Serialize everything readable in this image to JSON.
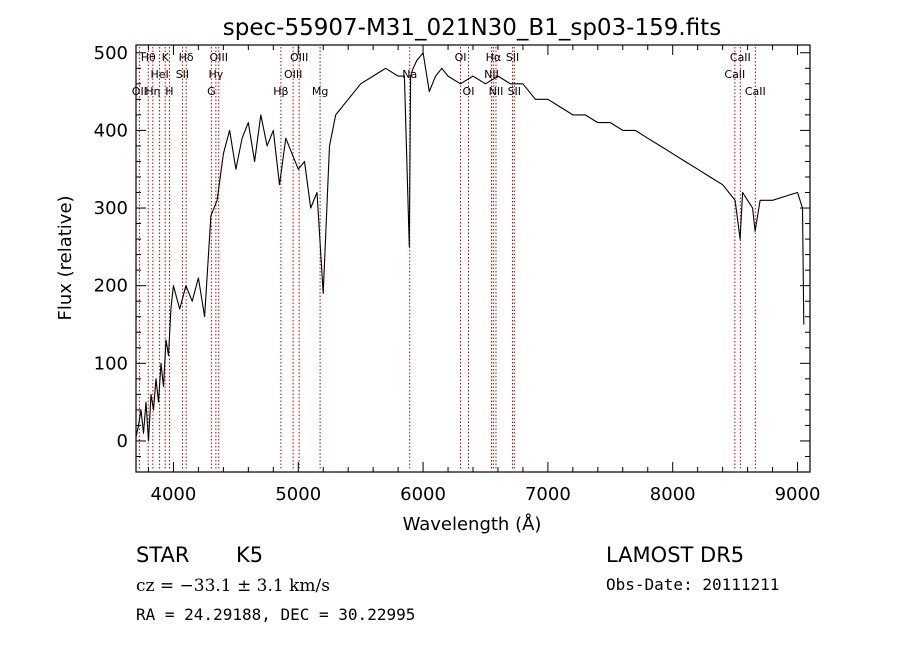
{
  "chart_data": {
    "type": "line",
    "title": "spec-55907-M31_021N30_B1_sp03-159.fits",
    "xlabel": "Wavelength (Å)",
    "ylabel": "Flux (relative)",
    "xlim": [
      3700,
      9100
    ],
    "ylim": [
      -40,
      510
    ],
    "grid": false,
    "x_ticks": [
      4000,
      5000,
      6000,
      7000,
      8000,
      9000
    ],
    "x_tick_labels": [
      "4000",
      "5000",
      "6000",
      "7000",
      "8000",
      "9000"
    ],
    "y_ticks": [
      0,
      100,
      200,
      300,
      400,
      500
    ],
    "y_tick_labels": [
      "0",
      "100",
      "200",
      "300",
      "400",
      "500"
    ],
    "series": [
      {
        "x": [
          3700,
          3720,
          3740,
          3760,
          3780,
          3800,
          3820,
          3840,
          3860,
          3880,
          3900,
          3920,
          3940,
          3960,
          3980,
          4000,
          4050,
          4100,
          4150,
          4200,
          4250,
          4300,
          4350,
          4400,
          4450,
          4500,
          4550,
          4600,
          4650,
          4700,
          4750,
          4800,
          4850,
          4900,
          4950,
          5000,
          5050,
          5100,
          5150,
          5200,
          5250,
          5300,
          5400,
          5500,
          5600,
          5700,
          5800,
          5850,
          5890,
          5900,
          5920,
          5950,
          6000,
          6050,
          6100,
          6150,
          6200,
          6300,
          6400,
          6500,
          6600,
          6700,
          6800,
          6900,
          7000,
          7100,
          7200,
          7300,
          7400,
          7500,
          7600,
          7700,
          7800,
          7900,
          8000,
          8100,
          8200,
          8300,
          8400,
          8450,
          8500,
          8540,
          8560,
          8600,
          8640,
          8660,
          8700,
          8800,
          8900,
          9000,
          9040,
          9050
        ],
        "y": [
          5,
          20,
          40,
          10,
          50,
          0,
          60,
          40,
          80,
          50,
          100,
          70,
          130,
          110,
          170,
          200,
          170,
          200,
          180,
          210,
          160,
          290,
          310,
          370,
          400,
          350,
          390,
          410,
          360,
          420,
          380,
          400,
          330,
          390,
          370,
          350,
          360,
          300,
          320,
          190,
          380,
          420,
          440,
          460,
          470,
          480,
          470,
          470,
          250,
          470,
          480,
          490,
          500,
          450,
          470,
          480,
          470,
          460,
          470,
          460,
          470,
          460,
          460,
          440,
          440,
          430,
          420,
          420,
          410,
          410,
          400,
          400,
          390,
          380,
          370,
          360,
          350,
          340,
          330,
          320,
          310,
          260,
          320,
          310,
          300,
          270,
          310,
          310,
          315,
          320,
          300,
          150
        ]
      }
    ],
    "line_markers": [
      {
        "wavelength": 3727,
        "label": "OII",
        "row": 2
      },
      {
        "wavelength": 3798,
        "label": "Hθ",
        "row": 0
      },
      {
        "wavelength": 3835,
        "label": "Hη",
        "row": 2
      },
      {
        "wavelength": 3889,
        "label": "HeI",
        "row": 1
      },
      {
        "wavelength": 3934,
        "label": "K",
        "row": 0
      },
      {
        "wavelength": 3968,
        "label": "H",
        "row": 2
      },
      {
        "wavelength": 4072,
        "label": "SII",
        "row": 1
      },
      {
        "wavelength": 4102,
        "label": "Hδ",
        "row": 0
      },
      {
        "wavelength": 4304,
        "label": "G",
        "row": 2
      },
      {
        "wavelength": 4340,
        "label": "Hγ",
        "row": 1
      },
      {
        "wavelength": 4363,
        "label": "OIII",
        "row": 0
      },
      {
        "wavelength": 4861,
        "label": "Hβ",
        "row": 2
      },
      {
        "wavelength": 4959,
        "label": "OIII",
        "row": 1
      },
      {
        "wavelength": 5007,
        "label": "OIII",
        "row": 0
      },
      {
        "wavelength": 5175,
        "label": "Mg",
        "row": 2
      },
      {
        "wavelength": 5893,
        "label": "Na",
        "row": 1
      },
      {
        "wavelength": 6300,
        "label": "OI",
        "row": 0
      },
      {
        "wavelength": 6364,
        "label": "OI",
        "row": 2
      },
      {
        "wavelength": 6548,
        "label": "NII",
        "row": 1
      },
      {
        "wavelength": 6563,
        "label": "Hα",
        "row": 0
      },
      {
        "wavelength": 6584,
        "label": "NII",
        "row": 2
      },
      {
        "wavelength": 6717,
        "label": "SII",
        "row": 0
      },
      {
        "wavelength": 6731,
        "label": "SII",
        "row": 2
      },
      {
        "wavelength": 8498,
        "label": "CaII",
        "row": 1
      },
      {
        "wavelength": 8542,
        "label": "CaII",
        "row": 0
      },
      {
        "wavelength": 8662,
        "label": "CaII",
        "row": 2
      }
    ]
  },
  "info": {
    "class_label": "STAR",
    "subclass": "K5",
    "cz_text": "cz = −33.1 ± 3.1 km/s",
    "radec_text": "RA =  24.29188, DEC =  30.22995",
    "survey": "LAMOST DR5",
    "obs_date": "Obs-Date: 20111211"
  },
  "colors": {
    "spectrum": "#000000",
    "marker_line": "#c00000",
    "axes": "#000000"
  }
}
